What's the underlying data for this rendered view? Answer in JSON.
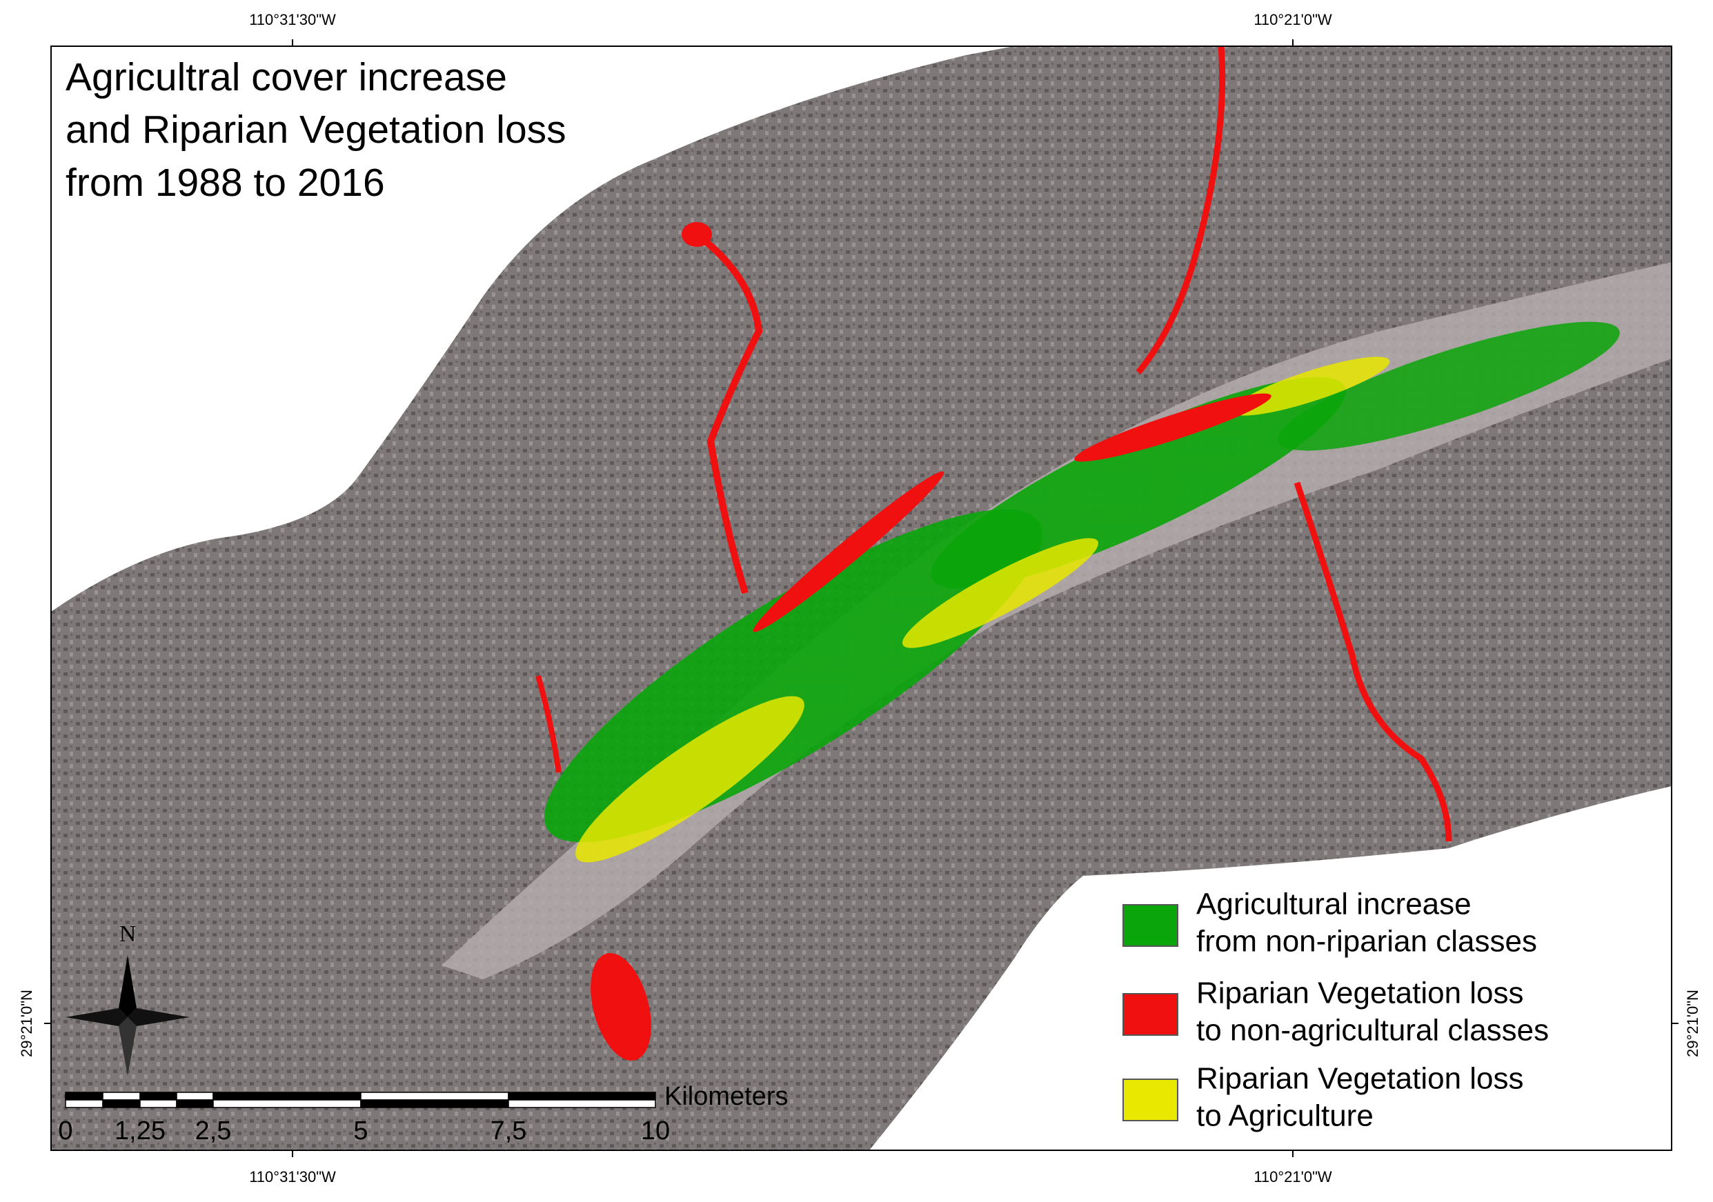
{
  "title": [
    "Agricultral cover increase",
    "and Riparian Vegetation loss",
    "from 1988 to 2016"
  ],
  "coordinates": {
    "top": [
      "110°31'30\"W",
      "110°21'0\"W"
    ],
    "bottom": [
      "110°31'30\"W",
      "110°21'0\"W"
    ],
    "left": "29°21'0\"N",
    "right": "29°21'0\"N"
  },
  "legend": [
    {
      "label": [
        "Agricultural increase",
        "from non-riparian classes"
      ],
      "color": "#0aa50a"
    },
    {
      "label": [
        "Riparian Vegetation loss",
        "to non-agricultural classes"
      ],
      "color": "#f01010"
    },
    {
      "label": [
        "Riparian Vegetation loss",
        "to Agriculture"
      ],
      "color": "#e8e800"
    }
  ],
  "north": "N",
  "scale_bar": {
    "unit": "Kilometers",
    "labels": [
      "0",
      "1,25",
      "2,5",
      "5",
      "7,5",
      "10"
    ]
  }
}
